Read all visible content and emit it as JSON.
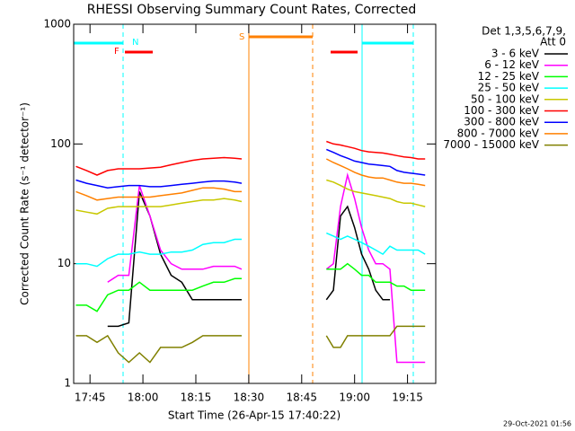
{
  "chart_data": {
    "type": "line",
    "title": "RHESSI Observing Summary Count Rates, Corrected",
    "xlabel": "Start Time (26-Apr-15 17:40:22)",
    "ylabel": "Corrected Count Rate (s⁻¹ detector⁻¹)",
    "legend_header": [
      "Det 1,3,5,6,7,9,",
      "Att 0"
    ],
    "footer": "29-Oct-2021 01:56",
    "annotations": [
      {
        "label": "N",
        "color": "#00ffff"
      },
      {
        "label": "F",
        "color": "#ff0000"
      },
      {
        "label": "S",
        "color": "#ff8000"
      }
    ],
    "log_y": true,
    "xlim": [
      40.37,
      143
    ],
    "ylim": [
      1,
      1000
    ],
    "xticks": [
      {
        "value": 45,
        "label": "17:45"
      },
      {
        "value": 60,
        "label": "18:00"
      },
      {
        "value": 75,
        "label": "18:15"
      },
      {
        "value": 90,
        "label": "18:30"
      },
      {
        "value": 105,
        "label": "18:45"
      },
      {
        "value": 120,
        "label": "19:00"
      },
      {
        "value": 135,
        "label": "19:15"
      }
    ],
    "yticks": [
      1,
      10,
      100,
      1000
    ],
    "x": [
      41,
      44,
      47,
      50,
      53,
      56,
      59,
      62,
      65,
      68,
      71,
      74,
      77,
      80,
      83,
      86,
      88,
      100,
      112,
      114,
      116,
      118,
      120,
      122,
      124,
      126,
      128,
      130,
      132,
      134,
      136,
      138,
      140
    ],
    "series": [
      {
        "name": "3 - 6 keV",
        "color": "#000000",
        "values": [
          null,
          null,
          null,
          3,
          3,
          3.2,
          40,
          25,
          12,
          8,
          7,
          5,
          5,
          5,
          5,
          5,
          5,
          null,
          5,
          6,
          25,
          30,
          20,
          12,
          9,
          6,
          5,
          5,
          null,
          null,
          null,
          null,
          null
        ]
      },
      {
        "name": "6 - 12 keV",
        "color": "#ff00ff",
        "values": [
          null,
          null,
          null,
          7,
          8,
          8,
          45,
          25,
          13,
          10,
          9,
          9,
          9,
          9.5,
          9.5,
          9.5,
          9,
          null,
          9,
          10,
          30,
          55,
          35,
          20,
          13,
          10,
          10,
          9,
          1.5,
          1.5,
          1.5,
          1.5,
          1.5
        ]
      },
      {
        "name": "12 - 25 keV",
        "color": "#00ff00",
        "values": [
          4.5,
          4.5,
          4,
          5.5,
          6,
          6,
          7,
          6,
          6,
          6,
          6,
          6,
          6.5,
          7,
          7,
          7.5,
          7.5,
          null,
          9,
          9,
          9,
          10,
          9,
          8,
          8,
          7,
          7,
          7,
          6.5,
          6.5,
          6,
          6,
          6
        ]
      },
      {
        "name": "25 - 50 keV",
        "color": "#00ffff",
        "values": [
          10,
          10,
          9.5,
          11,
          12,
          12,
          12.5,
          12,
          12,
          12.5,
          12.5,
          13,
          14.5,
          15,
          15,
          16,
          16,
          null,
          18,
          17,
          16,
          17,
          16,
          15,
          14,
          13,
          12,
          14,
          13,
          13,
          13,
          13,
          12
        ]
      },
      {
        "name": "50 - 100 keV",
        "color": "#c8c800",
        "values": [
          28,
          27,
          26,
          29,
          30,
          30,
          30,
          30,
          30,
          31,
          32,
          33,
          34,
          34,
          35,
          34,
          33,
          null,
          50,
          48,
          45,
          42,
          40,
          39,
          38,
          37,
          36,
          35,
          33,
          32,
          32,
          31,
          30
        ]
      },
      {
        "name": "100 - 300 keV",
        "color": "#ff0000",
        "values": [
          65,
          60,
          55,
          60,
          62,
          62,
          62,
          63,
          64,
          67,
          70,
          73,
          75,
          76,
          77,
          76,
          75,
          null,
          105,
          100,
          98,
          95,
          92,
          88,
          86,
          85,
          84,
          82,
          80,
          78,
          77,
          75,
          75
        ]
      },
      {
        "name": "300 - 800 keV",
        "color": "#0000ff",
        "values": [
          50,
          47,
          45,
          43,
          44,
          45,
          45,
          44,
          44,
          45,
          46,
          47,
          48,
          49,
          49,
          48,
          47,
          null,
          90,
          85,
          80,
          76,
          72,
          70,
          68,
          67,
          66,
          65,
          60,
          58,
          57,
          56,
          55
        ]
      },
      {
        "name": "800 - 7000 keV",
        "color": "#ff8000",
        "values": [
          40,
          37,
          34,
          35,
          36,
          36,
          36,
          36,
          37,
          38,
          39,
          41,
          43,
          43,
          42,
          40,
          40,
          null,
          75,
          70,
          66,
          62,
          58,
          55,
          53,
          52,
          52,
          50,
          48,
          47,
          47,
          46,
          45
        ]
      },
      {
        "name": "7000 - 15000 keV",
        "color": "#808000",
        "values": [
          2.5,
          2.5,
          2.2,
          2.5,
          1.8,
          1.5,
          1.8,
          1.5,
          2,
          2,
          2,
          2.2,
          2.5,
          2.5,
          2.5,
          2.5,
          2.5,
          null,
          2.5,
          2,
          2,
          2.5,
          2.5,
          2.5,
          2.5,
          2.5,
          2.5,
          2.5,
          3,
          3,
          3,
          3,
          3
        ]
      }
    ]
  }
}
